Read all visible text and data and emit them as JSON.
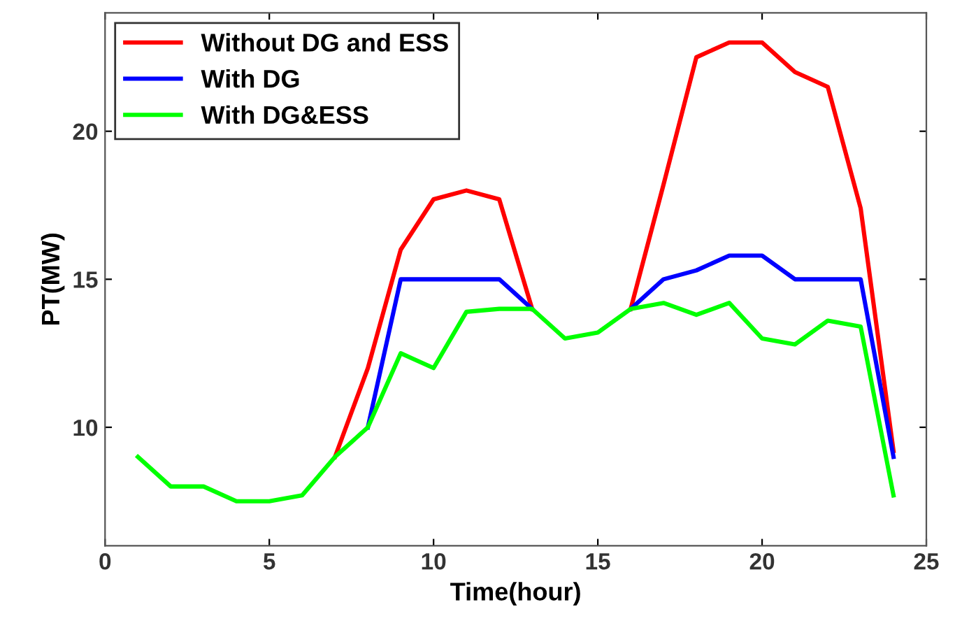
{
  "chart_data": {
    "type": "line",
    "xlabel": "Time(hour)",
    "ylabel": "PT(MW)",
    "x": [
      1,
      2,
      3,
      4,
      5,
      6,
      7,
      8,
      9,
      10,
      11,
      12,
      13,
      14,
      15,
      16,
      17,
      18,
      19,
      20,
      21,
      22,
      23,
      24
    ],
    "series": [
      {
        "name": "Without DG and ESS",
        "color": "#ff0000",
        "values": [
          null,
          null,
          null,
          null,
          null,
          null,
          9,
          12,
          16,
          17.7,
          18,
          17.7,
          14,
          null,
          null,
          14,
          18.2,
          22.5,
          23,
          23,
          22,
          21.5,
          17.4,
          9.2
        ]
      },
      {
        "name": "With DG",
        "color": "#0000ff",
        "values": [
          null,
          null,
          null,
          null,
          null,
          null,
          null,
          10,
          15,
          15,
          15,
          15,
          14,
          null,
          null,
          14,
          15,
          15.3,
          15.8,
          15.8,
          15,
          15,
          15,
          9
        ]
      },
      {
        "name": "With DG&ESS",
        "color": "#00ff00",
        "values": [
          9,
          8,
          8,
          7.5,
          7.5,
          7.7,
          9,
          10,
          12.5,
          12,
          13.9,
          14,
          14,
          13,
          13.2,
          14,
          14.2,
          13.8,
          14.2,
          13,
          12.8,
          13.6,
          13.4,
          7.7
        ]
      }
    ],
    "xlim": [
      0,
      25
    ],
    "ylim": [
      6,
      24
    ],
    "xticks": [
      0,
      5,
      10,
      15,
      20,
      25
    ],
    "yticks": [
      10,
      15,
      20
    ],
    "grid": false,
    "legend": "top left",
    "marker": "none",
    "line_style": "solid"
  }
}
